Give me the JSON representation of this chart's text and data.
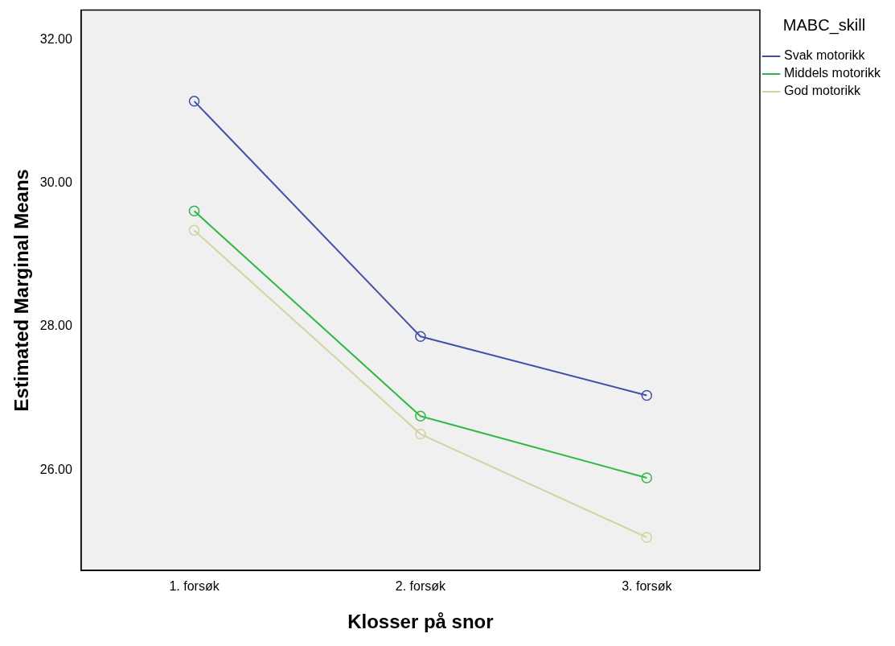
{
  "chart_data": {
    "type": "line",
    "xlabel": "Klosser på snor",
    "ylabel": "Estimated Marginal Means",
    "legend_title": "MABC_skill",
    "categories": [
      "1. forsøk",
      "2. forsøk",
      "3. forsøk"
    ],
    "series": [
      {
        "name": "Svak motorikk",
        "color": "#3e4fa8",
        "values": [
          31.14,
          27.86,
          27.04
        ]
      },
      {
        "name": "Middels motorikk",
        "color": "#2fb845",
        "values": [
          29.61,
          26.75,
          25.89
        ]
      },
      {
        "name": "God motorikk",
        "color": "#d6d1a2",
        "values": [
          29.34,
          26.5,
          25.06
        ]
      }
    ],
    "ylim": [
      24.6,
      32.41
    ],
    "yticks": [
      {
        "value": 26,
        "label": "26.00"
      },
      {
        "value": 28,
        "label": "28.00"
      },
      {
        "value": 30,
        "label": "30.00"
      },
      {
        "value": 32,
        "label": "32.00"
      }
    ],
    "grid": false,
    "legend": "top right",
    "marker": "circle",
    "line_style": "solid"
  }
}
